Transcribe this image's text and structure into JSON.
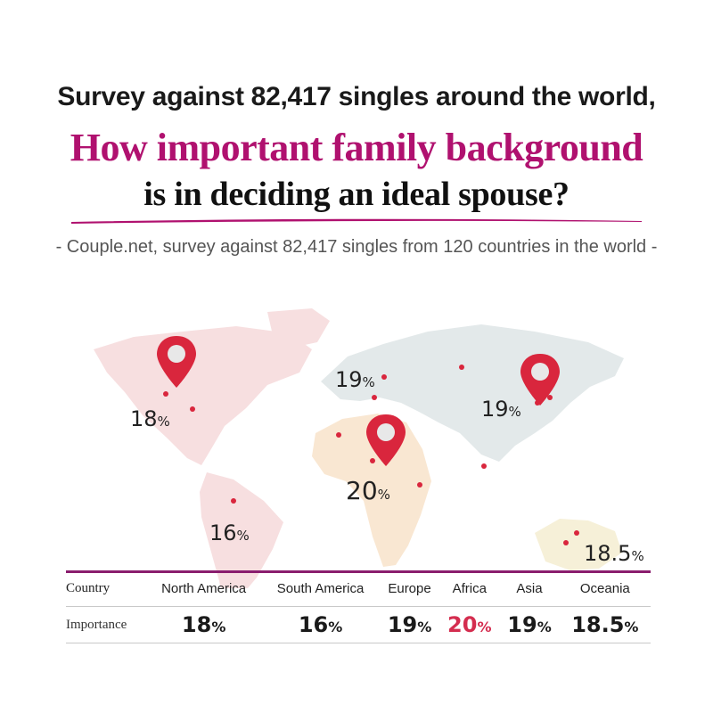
{
  "header": {
    "line1": "Survey against 82,417 singles around the world,",
    "line2": "How important family background",
    "line3": "is in deciding an ideal spouse?",
    "source": "- Couple.net, survey against 82,417 singles from 120 countries in the world -"
  },
  "colors": {
    "accent": "#b0116f",
    "highlight": "#d42d4f",
    "pin": "#d9263d",
    "map_north_america": "#f7dfe0",
    "map_south_america": "#f7dfe0",
    "map_europe_asia": "#e3e9ea",
    "map_africa": "#f9e7d2",
    "map_oceania": "#f6f0d8"
  },
  "table": {
    "row1_label": "Country",
    "row2_label": "Importance",
    "unit": "%"
  },
  "chart_data": {
    "type": "table",
    "categories": [
      "North America",
      "South America",
      "Europe",
      "Africa",
      "Asia",
      "Oceania"
    ],
    "values": [
      18,
      16,
      19,
      20,
      19,
      18.5
    ],
    "value_labels": [
      "18",
      "16",
      "19",
      "20",
      "19",
      "18.5"
    ],
    "unit": "%",
    "highlight": "Africa"
  }
}
